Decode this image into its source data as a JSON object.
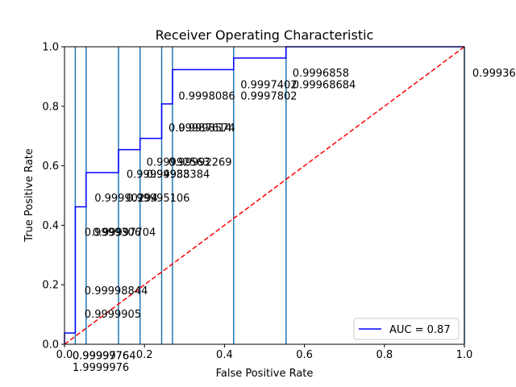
{
  "chart_data": {
    "type": "line",
    "title": "Receiver Operating Characteristic",
    "xlabel": "False Positive Rate",
    "ylabel": "True Positive Rate",
    "xlim": [
      0,
      1
    ],
    "ylim": [
      0,
      1
    ],
    "xticks": [
      "0.0",
      "0.2",
      "0.4",
      "0.6",
      "0.8",
      "1.0"
    ],
    "yticks": [
      "0.0",
      "0.2",
      "0.4",
      "0.6",
      "0.8",
      "1.0"
    ],
    "grid": false,
    "legend_position": "lower right",
    "legend": {
      "label": "AUC = 0.87",
      "color": "#0000ff"
    },
    "roc_curve": {
      "color": "#0000ff",
      "points": [
        [
          0.0,
          0.0
        ],
        [
          0.0,
          0.038
        ],
        [
          0.027,
          0.038
        ],
        [
          0.027,
          0.462
        ],
        [
          0.054,
          0.462
        ],
        [
          0.054,
          0.577
        ],
        [
          0.135,
          0.577
        ],
        [
          0.135,
          0.654
        ],
        [
          0.189,
          0.654
        ],
        [
          0.189,
          0.692
        ],
        [
          0.243,
          0.692
        ],
        [
          0.243,
          0.808
        ],
        [
          0.27,
          0.808
        ],
        [
          0.27,
          0.923
        ],
        [
          0.423,
          0.923
        ],
        [
          0.423,
          0.962
        ],
        [
          0.554,
          0.962
        ],
        [
          0.554,
          1.0
        ],
        [
          1.0,
          1.0
        ]
      ]
    },
    "threshold_lines": {
      "color": "#1f77b4",
      "x": [
        0.027,
        0.054,
        0.135,
        0.189,
        0.243,
        0.27,
        0.423,
        0.554,
        1.0
      ]
    },
    "diagonal": {
      "color": "#ff0000",
      "style": "dashed",
      "from": [
        0,
        0
      ],
      "to": [
        1,
        1
      ]
    },
    "annotations": [
      {
        "text": "1.9999976",
        "x": 0.02,
        "y": -0.09
      },
      {
        "text": "0.9999905",
        "x": 0.05,
        "y": 0.09
      },
      {
        "text": "0.99998844",
        "x": 0.05,
        "y": 0.168
      },
      {
        "text": "0.9999306",
        "x": 0.05,
        "y": 0.365
      },
      {
        "text": "0.99997704",
        "x": 0.07,
        "y": 0.365
      },
      {
        "text": "0.99990294",
        "x": 0.075,
        "y": 0.48
      },
      {
        "text": "0.99995106",
        "x": 0.155,
        "y": 0.48
      },
      {
        "text": "0.99994938",
        "x": 0.155,
        "y": 0.56
      },
      {
        "text": "0.99983384",
        "x": 0.205,
        "y": 0.56
      },
      {
        "text": "0.99992563",
        "x": 0.205,
        "y": 0.6
      },
      {
        "text": "0.99992269",
        "x": 0.26,
        "y": 0.6
      },
      {
        "text": "0.99987614",
        "x": 0.26,
        "y": 0.715
      },
      {
        "text": "0.9998574",
        "x": 0.285,
        "y": 0.715
      },
      {
        "text": "0.9998086",
        "x": 0.285,
        "y": 0.822
      },
      {
        "text": "0.9997802",
        "x": 0.44,
        "y": 0.822
      },
      {
        "text": "0.9997402",
        "x": 0.44,
        "y": 0.86
      },
      {
        "text": "0.99968684",
        "x": 0.57,
        "y": 0.86
      },
      {
        "text": "0.9996858",
        "x": 0.57,
        "y": 0.9
      },
      {
        "text": "0.99936",
        "x": 1.02,
        "y": 0.9
      },
      {
        "text": "0.9999976",
        "x": 0.02,
        "y": -0.05
      },
      {
        "text": "0.99997764",
        "x": 0.02,
        "y": -0.05
      }
    ]
  }
}
